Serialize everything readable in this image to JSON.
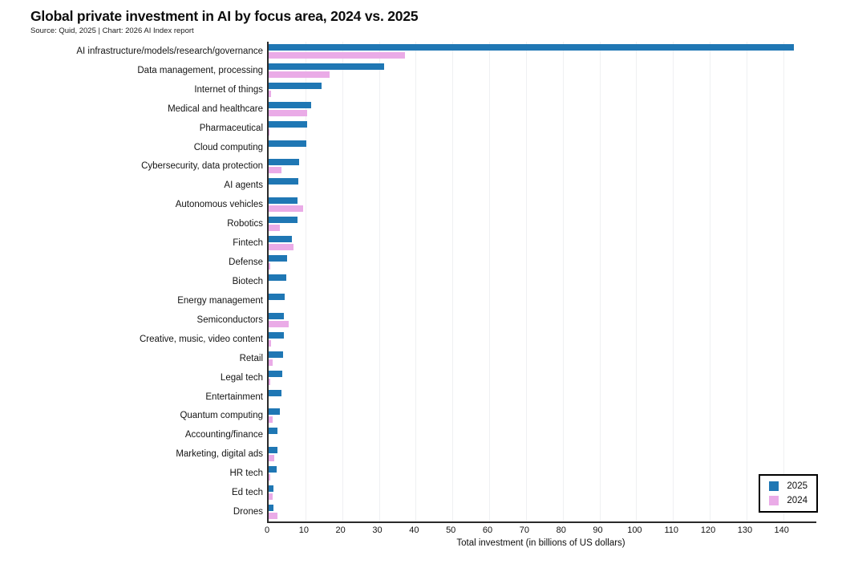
{
  "header": {
    "title": "Global private investment in AI by focus area, 2024 vs. 2025",
    "subtitle": "Source: Quid, 2025 | Chart: 2026 AI Index report"
  },
  "chart_data": {
    "type": "bar",
    "orientation": "horizontal",
    "title": "Global private investment in AI by focus area, 2024 vs. 2025",
    "subtitle": "Source: Quid, 2025 | Chart: 2026 AI Index report",
    "xlabel": "Total investment (in billions of US dollars)",
    "ylabel": "",
    "xlim": [
      0,
      149
    ],
    "xticks": [
      0,
      10,
      20,
      30,
      40,
      50,
      60,
      70,
      80,
      90,
      100,
      110,
      120,
      130,
      140
    ],
    "grid": "vertical-light",
    "legend_position": "inside-bottom-right",
    "categories": [
      "AI infrastructure/models/research/governance",
      "Data management, processing",
      "Internet of things",
      "Medical and healthcare",
      "Pharmaceutical",
      "Cloud computing",
      "Cybersecurity, data protection",
      "AI agents",
      "Autonomous vehicles",
      "Robotics",
      "Fintech",
      "Defense",
      "Biotech",
      "Energy management",
      "Semiconductors",
      "Creative, music, video content",
      "Retail",
      "Legal tech",
      "Entertainment",
      "Quantum computing",
      "Accounting/finance",
      "Marketing, digital ads",
      "HR tech",
      "Ed tech",
      "Drones"
    ],
    "series": [
      {
        "name": "2025",
        "color": "#1f77b4",
        "values": [
          143,
          31.5,
          14.3,
          11.5,
          10.4,
          10.3,
          8.3,
          8.0,
          7.9,
          7.8,
          6.3,
          5.1,
          4.7,
          4.4,
          4.2,
          4.1,
          4.0,
          3.6,
          3.5,
          3.0,
          2.4,
          2.4,
          2.2,
          1.4,
          1.2
        ]
      },
      {
        "name": "2024",
        "color": "#eaabe7",
        "values": [
          37,
          16.5,
          0.6,
          10.5,
          0.3,
          0,
          3.5,
          0,
          9.3,
          3.0,
          6.7,
          0.4,
          0,
          0,
          5.4,
          0.7,
          1.0,
          0.5,
          0,
          1.0,
          0,
          1.5,
          0.5,
          1.0,
          2.5
        ]
      }
    ]
  },
  "legend": {
    "items": [
      {
        "label": "2025",
        "color": "#1f77b4"
      },
      {
        "label": "2024",
        "color": "#eaabe7"
      }
    ]
  },
  "colors": {
    "bar_2025": "#1f77b4",
    "bar_2024": "#eaabe7",
    "axis": "#2b2b2b",
    "gridline": "#eff0f2",
    "background": "#ffffff"
  }
}
